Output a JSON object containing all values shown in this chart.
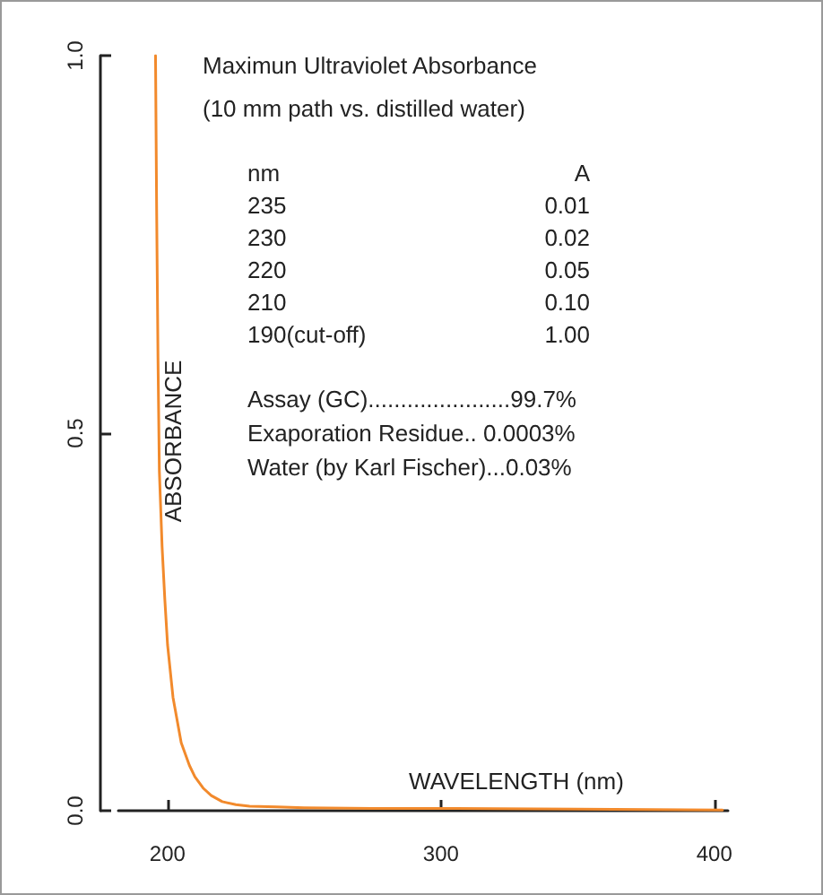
{
  "chart_data": {
    "type": "line",
    "title": "Maximun Ultraviolet Absorbance",
    "subtitle": "(10 mm path vs. distilled water)",
    "xlabel": "WAVELENGTH (nm)",
    "ylabel": "ABSORBANCE",
    "x": [
      195.6,
      196,
      196.5,
      197,
      198,
      199,
      200,
      202,
      205,
      208,
      210,
      213,
      216,
      220,
      225,
      230,
      240,
      250,
      275,
      300,
      350,
      403
    ],
    "series": [
      {
        "color": "#f28a2c",
        "values": [
          1.0,
          0.8,
          0.6,
          0.45,
          0.35,
          0.28,
          0.22,
          0.15,
          0.09,
          0.06,
          0.045,
          0.03,
          0.02,
          0.012,
          0.008,
          0.006,
          0.005,
          0.004,
          0.003,
          0.003,
          0.002,
          0.001
        ]
      }
    ],
    "xlim": [
      182,
      405
    ],
    "xticks": [
      200,
      300,
      400
    ],
    "ylim": [
      0,
      1
    ],
    "yticks": [
      {
        "value": 0,
        "label": "0.0"
      },
      {
        "value": 0.5,
        "label": "0.5"
      },
      {
        "value": 1,
        "label": "1.0"
      }
    ],
    "annotations": [
      "nm\tA",
      "235\t0.01",
      "230\t0.02",
      "220\t0.05",
      "210\t0.10",
      "190(cut-off)\t1.00",
      "Assay (GC)......................99.7%",
      "Exaporation Residue.. 0.0003%",
      "Water (by Karl Fischer)...0.03%"
    ],
    "grid": false,
    "marker": "none",
    "line_style": "solid"
  }
}
